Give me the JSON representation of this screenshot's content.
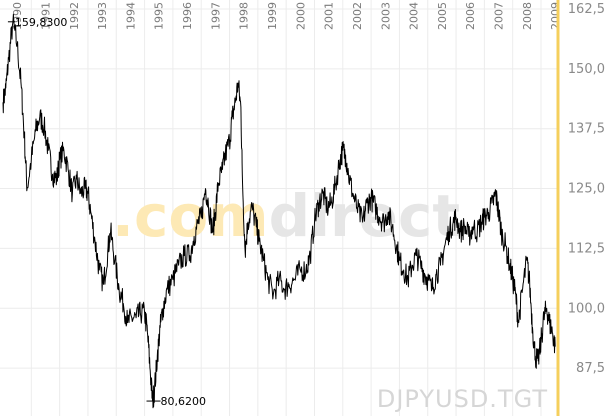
{
  "chart_data": {
    "type": "line",
    "title": "",
    "xlabel": "",
    "ylabel": "",
    "symbol": "DJPYUSD.TGT",
    "watermark": {
      "part1": ".com",
      "part2": "direct",
      "color1": "#fde9b5",
      "color2": "#e6e6e6"
    },
    "x_ticks": [
      "1990",
      "1991",
      "1992",
      "1993",
      "1994",
      "1995",
      "1996",
      "1997",
      "1998",
      "1999",
      "2000",
      "2001",
      "2002",
      "2003",
      "2004",
      "2005",
      "2006",
      "2007",
      "2008",
      "2009"
    ],
    "y_ticks": [
      "87,5",
      "100,0",
      "112,5",
      "125,0",
      "137,5",
      "150,0",
      "162,5"
    ],
    "xlim": [
      1990.0,
      2009.6
    ],
    "ylim": [
      77.5,
      162.5
    ],
    "grid": true,
    "accent_color": "#f5cf5c",
    "annotations": {
      "max": {
        "label": "159,8300",
        "x": 1990.35,
        "y": 159.83
      },
      "min": {
        "label": "80,6200",
        "x": 1995.28,
        "y": 80.62
      }
    },
    "series": [
      {
        "points": [
          [
            1990.0,
            143
          ],
          [
            1990.1,
            146
          ],
          [
            1990.2,
            152
          ],
          [
            1990.35,
            159.83
          ],
          [
            1990.5,
            155
          ],
          [
            1990.65,
            146
          ],
          [
            1990.75,
            136
          ],
          [
            1990.85,
            125
          ],
          [
            1991.0,
            131
          ],
          [
            1991.15,
            137
          ],
          [
            1991.3,
            140
          ],
          [
            1991.45,
            138
          ],
          [
            1991.6,
            133
          ],
          [
            1991.75,
            128
          ],
          [
            1991.9,
            127
          ],
          [
            1992.0,
            131
          ],
          [
            1992.15,
            133
          ],
          [
            1992.3,
            129
          ],
          [
            1992.45,
            124
          ],
          [
            1992.6,
            127
          ],
          [
            1992.75,
            124
          ],
          [
            1992.9,
            125
          ],
          [
            1993.0,
            124
          ],
          [
            1993.1,
            120
          ],
          [
            1993.25,
            114
          ],
          [
            1993.4,
            108
          ],
          [
            1993.55,
            105
          ],
          [
            1993.7,
            112
          ],
          [
            1993.8,
            116
          ],
          [
            1993.95,
            110
          ],
          [
            1994.1,
            104
          ],
          [
            1994.25,
            101
          ],
          [
            1994.4,
            97
          ],
          [
            1994.55,
            98
          ],
          [
            1994.7,
            98
          ],
          [
            1994.85,
            99
          ],
          [
            1995.0,
            99
          ],
          [
            1995.1,
            95
          ],
          [
            1995.2,
            87
          ],
          [
            1995.28,
            80.62
          ],
          [
            1995.35,
            83
          ],
          [
            1995.45,
            90
          ],
          [
            1995.55,
            96
          ],
          [
            1995.65,
            100
          ],
          [
            1995.8,
            104
          ],
          [
            1996.0,
            106
          ],
          [
            1996.2,
            109
          ],
          [
            1996.4,
            111
          ],
          [
            1996.6,
            111
          ],
          [
            1996.75,
            115
          ],
          [
            1996.9,
            118
          ],
          [
            1997.0,
            119
          ],
          [
            1997.15,
            125
          ],
          [
            1997.25,
            122
          ],
          [
            1997.4,
            116
          ],
          [
            1997.5,
            120
          ],
          [
            1997.6,
            126
          ],
          [
            1997.75,
            129
          ],
          [
            1997.85,
            132
          ],
          [
            1998.0,
            135
          ],
          [
            1998.1,
            140
          ],
          [
            1998.2,
            143
          ],
          [
            1998.3,
            147
          ],
          [
            1998.4,
            142
          ],
          [
            1998.45,
            128
          ],
          [
            1998.55,
            112
          ],
          [
            1998.65,
            118
          ],
          [
            1998.8,
            121
          ],
          [
            1998.95,
            117
          ],
          [
            1999.05,
            114
          ],
          [
            1999.2,
            110
          ],
          [
            1999.35,
            106
          ],
          [
            1999.55,
            103
          ],
          [
            1999.75,
            106
          ],
          [
            1999.95,
            104
          ],
          [
            2000.1,
            105
          ],
          [
            2000.3,
            106
          ],
          [
            2000.5,
            108
          ],
          [
            2000.7,
            108
          ],
          [
            2000.85,
            111
          ],
          [
            2001.0,
            118
          ],
          [
            2001.15,
            122
          ],
          [
            2001.3,
            124
          ],
          [
            2001.45,
            121
          ],
          [
            2001.6,
            122
          ],
          [
            2001.75,
            126
          ],
          [
            2001.9,
            131
          ],
          [
            2002.0,
            133
          ],
          [
            2002.1,
            132
          ],
          [
            2002.2,
            128
          ],
          [
            2002.35,
            124
          ],
          [
            2002.5,
            121
          ],
          [
            2002.7,
            118
          ],
          [
            2002.85,
            122
          ],
          [
            2003.0,
            123
          ],
          [
            2003.15,
            121
          ],
          [
            2003.3,
            119
          ],
          [
            2003.45,
            118
          ],
          [
            2003.6,
            120
          ],
          [
            2003.75,
            117
          ],
          [
            2003.9,
            113
          ],
          [
            2004.0,
            110
          ],
          [
            2004.15,
            108
          ],
          [
            2004.3,
            106
          ],
          [
            2004.45,
            109
          ],
          [
            2004.6,
            111
          ],
          [
            2004.75,
            109
          ],
          [
            2004.9,
            107
          ],
          [
            2005.0,
            106
          ],
          [
            2005.15,
            104
          ],
          [
            2005.3,
            107
          ],
          [
            2005.45,
            109
          ],
          [
            2005.6,
            113
          ],
          [
            2005.75,
            116
          ],
          [
            2005.9,
            118
          ],
          [
            2006.0,
            119
          ],
          [
            2006.15,
            116
          ],
          [
            2006.3,
            117
          ],
          [
            2006.45,
            115
          ],
          [
            2006.6,
            117
          ],
          [
            2006.75,
            116
          ],
          [
            2006.9,
            118
          ],
          [
            2007.0,
            119
          ],
          [
            2007.15,
            120
          ],
          [
            2007.3,
            122
          ],
          [
            2007.4,
            124
          ],
          [
            2007.5,
            120
          ],
          [
            2007.6,
            116
          ],
          [
            2007.75,
            113
          ],
          [
            2007.9,
            109
          ],
          [
            2008.0,
            106
          ],
          [
            2008.1,
            103
          ],
          [
            2008.2,
            97
          ],
          [
            2008.35,
            104
          ],
          [
            2008.5,
            110
          ],
          [
            2008.6,
            105
          ],
          [
            2008.7,
            96
          ],
          [
            2008.8,
            90
          ],
          [
            2008.9,
            89
          ],
          [
            2009.0,
            93
          ],
          [
            2009.1,
            98
          ],
          [
            2009.2,
            100
          ],
          [
            2009.3,
            97
          ],
          [
            2009.4,
            95
          ],
          [
            2009.5,
            92
          ]
        ]
      }
    ]
  }
}
